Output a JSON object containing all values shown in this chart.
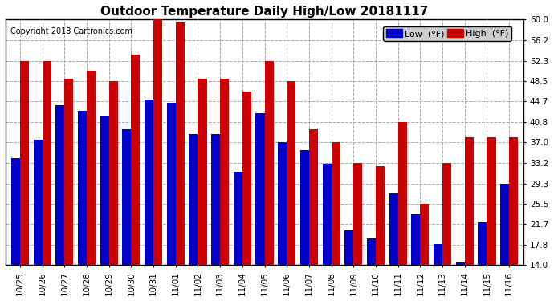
{
  "title": "Outdoor Temperature Daily High/Low 20181117",
  "copyright": "Copyright 2018 Cartronics.com",
  "dates": [
    "10/25",
    "10/26",
    "10/27",
    "10/28",
    "10/29",
    "10/30",
    "10/31",
    "11/01",
    "11/02",
    "11/03",
    "11/04",
    "11/05",
    "11/06",
    "11/07",
    "11/08",
    "11/09",
    "11/10",
    "11/11",
    "11/12",
    "11/13",
    "11/14",
    "11/15",
    "11/16"
  ],
  "highs": [
    52.3,
    52.3,
    49.0,
    50.5,
    48.5,
    53.5,
    60.5,
    59.5,
    49.0,
    49.0,
    46.5,
    52.3,
    48.5,
    39.5,
    37.0,
    33.2,
    32.5,
    40.8,
    25.5,
    33.2,
    38.0,
    38.0,
    38.0
  ],
  "lows": [
    34.0,
    37.5,
    44.0,
    43.0,
    42.0,
    39.5,
    45.0,
    44.5,
    38.5,
    38.5,
    31.5,
    42.5,
    37.0,
    35.5,
    33.0,
    20.5,
    19.0,
    27.5,
    23.5,
    18.0,
    14.5,
    22.0,
    29.3
  ],
  "low_color": "#0000cc",
  "high_color": "#cc0000",
  "bg_color": "#ffffff",
  "grid_color": "#aaaaaa",
  "yticks": [
    14.0,
    17.8,
    21.7,
    25.5,
    29.3,
    33.2,
    37.0,
    40.8,
    44.7,
    48.5,
    52.3,
    56.2,
    60.0
  ],
  "ymin": 14.0,
  "ymax": 60.0,
  "legend_low_label": "Low  (°F)",
  "legend_high_label": "High  (°F)",
  "title_fontsize": 11,
  "copyright_fontsize": 7,
  "tick_fontsize": 7.5,
  "legend_fontsize": 8
}
